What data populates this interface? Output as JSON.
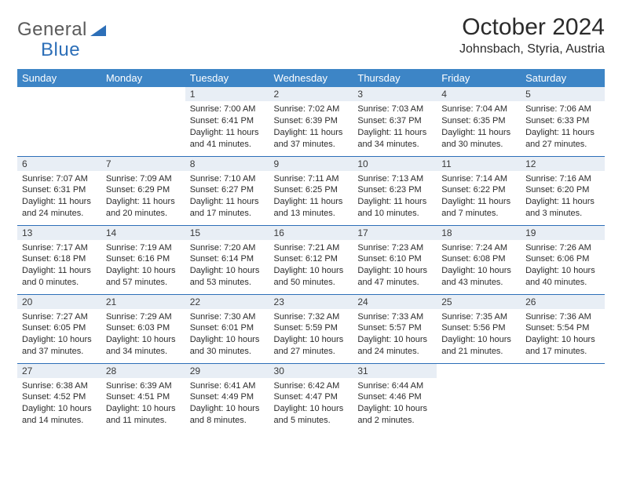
{
  "logo": {
    "text_gray": "General",
    "text_blue": "Blue"
  },
  "title": "October 2024",
  "location": "Johnsbach, Styria, Austria",
  "colors": {
    "header_bg": "#3d85c6",
    "header_text": "#ffffff",
    "daynum_bg": "#e8eef5",
    "row_border": "#2d6fb8",
    "body_text": "#2b2b2b",
    "logo_gray": "#5a5a5a",
    "logo_blue": "#2d6fb8"
  },
  "day_headers": [
    "Sunday",
    "Monday",
    "Tuesday",
    "Wednesday",
    "Thursday",
    "Friday",
    "Saturday"
  ],
  "weeks": [
    [
      {
        "n": "",
        "sr": "",
        "ss": "",
        "dl": ""
      },
      {
        "n": "",
        "sr": "",
        "ss": "",
        "dl": ""
      },
      {
        "n": "1",
        "sr": "Sunrise: 7:00 AM",
        "ss": "Sunset: 6:41 PM",
        "dl": "Daylight: 11 hours and 41 minutes."
      },
      {
        "n": "2",
        "sr": "Sunrise: 7:02 AM",
        "ss": "Sunset: 6:39 PM",
        "dl": "Daylight: 11 hours and 37 minutes."
      },
      {
        "n": "3",
        "sr": "Sunrise: 7:03 AM",
        "ss": "Sunset: 6:37 PM",
        "dl": "Daylight: 11 hours and 34 minutes."
      },
      {
        "n": "4",
        "sr": "Sunrise: 7:04 AM",
        "ss": "Sunset: 6:35 PM",
        "dl": "Daylight: 11 hours and 30 minutes."
      },
      {
        "n": "5",
        "sr": "Sunrise: 7:06 AM",
        "ss": "Sunset: 6:33 PM",
        "dl": "Daylight: 11 hours and 27 minutes."
      }
    ],
    [
      {
        "n": "6",
        "sr": "Sunrise: 7:07 AM",
        "ss": "Sunset: 6:31 PM",
        "dl": "Daylight: 11 hours and 24 minutes."
      },
      {
        "n": "7",
        "sr": "Sunrise: 7:09 AM",
        "ss": "Sunset: 6:29 PM",
        "dl": "Daylight: 11 hours and 20 minutes."
      },
      {
        "n": "8",
        "sr": "Sunrise: 7:10 AM",
        "ss": "Sunset: 6:27 PM",
        "dl": "Daylight: 11 hours and 17 minutes."
      },
      {
        "n": "9",
        "sr": "Sunrise: 7:11 AM",
        "ss": "Sunset: 6:25 PM",
        "dl": "Daylight: 11 hours and 13 minutes."
      },
      {
        "n": "10",
        "sr": "Sunrise: 7:13 AM",
        "ss": "Sunset: 6:23 PM",
        "dl": "Daylight: 11 hours and 10 minutes."
      },
      {
        "n": "11",
        "sr": "Sunrise: 7:14 AM",
        "ss": "Sunset: 6:22 PM",
        "dl": "Daylight: 11 hours and 7 minutes."
      },
      {
        "n": "12",
        "sr": "Sunrise: 7:16 AM",
        "ss": "Sunset: 6:20 PM",
        "dl": "Daylight: 11 hours and 3 minutes."
      }
    ],
    [
      {
        "n": "13",
        "sr": "Sunrise: 7:17 AM",
        "ss": "Sunset: 6:18 PM",
        "dl": "Daylight: 11 hours and 0 minutes."
      },
      {
        "n": "14",
        "sr": "Sunrise: 7:19 AM",
        "ss": "Sunset: 6:16 PM",
        "dl": "Daylight: 10 hours and 57 minutes."
      },
      {
        "n": "15",
        "sr": "Sunrise: 7:20 AM",
        "ss": "Sunset: 6:14 PM",
        "dl": "Daylight: 10 hours and 53 minutes."
      },
      {
        "n": "16",
        "sr": "Sunrise: 7:21 AM",
        "ss": "Sunset: 6:12 PM",
        "dl": "Daylight: 10 hours and 50 minutes."
      },
      {
        "n": "17",
        "sr": "Sunrise: 7:23 AM",
        "ss": "Sunset: 6:10 PM",
        "dl": "Daylight: 10 hours and 47 minutes."
      },
      {
        "n": "18",
        "sr": "Sunrise: 7:24 AM",
        "ss": "Sunset: 6:08 PM",
        "dl": "Daylight: 10 hours and 43 minutes."
      },
      {
        "n": "19",
        "sr": "Sunrise: 7:26 AM",
        "ss": "Sunset: 6:06 PM",
        "dl": "Daylight: 10 hours and 40 minutes."
      }
    ],
    [
      {
        "n": "20",
        "sr": "Sunrise: 7:27 AM",
        "ss": "Sunset: 6:05 PM",
        "dl": "Daylight: 10 hours and 37 minutes."
      },
      {
        "n": "21",
        "sr": "Sunrise: 7:29 AM",
        "ss": "Sunset: 6:03 PM",
        "dl": "Daylight: 10 hours and 34 minutes."
      },
      {
        "n": "22",
        "sr": "Sunrise: 7:30 AM",
        "ss": "Sunset: 6:01 PM",
        "dl": "Daylight: 10 hours and 30 minutes."
      },
      {
        "n": "23",
        "sr": "Sunrise: 7:32 AM",
        "ss": "Sunset: 5:59 PM",
        "dl": "Daylight: 10 hours and 27 minutes."
      },
      {
        "n": "24",
        "sr": "Sunrise: 7:33 AM",
        "ss": "Sunset: 5:57 PM",
        "dl": "Daylight: 10 hours and 24 minutes."
      },
      {
        "n": "25",
        "sr": "Sunrise: 7:35 AM",
        "ss": "Sunset: 5:56 PM",
        "dl": "Daylight: 10 hours and 21 minutes."
      },
      {
        "n": "26",
        "sr": "Sunrise: 7:36 AM",
        "ss": "Sunset: 5:54 PM",
        "dl": "Daylight: 10 hours and 17 minutes."
      }
    ],
    [
      {
        "n": "27",
        "sr": "Sunrise: 6:38 AM",
        "ss": "Sunset: 4:52 PM",
        "dl": "Daylight: 10 hours and 14 minutes."
      },
      {
        "n": "28",
        "sr": "Sunrise: 6:39 AM",
        "ss": "Sunset: 4:51 PM",
        "dl": "Daylight: 10 hours and 11 minutes."
      },
      {
        "n": "29",
        "sr": "Sunrise: 6:41 AM",
        "ss": "Sunset: 4:49 PM",
        "dl": "Daylight: 10 hours and 8 minutes."
      },
      {
        "n": "30",
        "sr": "Sunrise: 6:42 AM",
        "ss": "Sunset: 4:47 PM",
        "dl": "Daylight: 10 hours and 5 minutes."
      },
      {
        "n": "31",
        "sr": "Sunrise: 6:44 AM",
        "ss": "Sunset: 4:46 PM",
        "dl": "Daylight: 10 hours and 2 minutes."
      },
      {
        "n": "",
        "sr": "",
        "ss": "",
        "dl": ""
      },
      {
        "n": "",
        "sr": "",
        "ss": "",
        "dl": ""
      }
    ]
  ]
}
